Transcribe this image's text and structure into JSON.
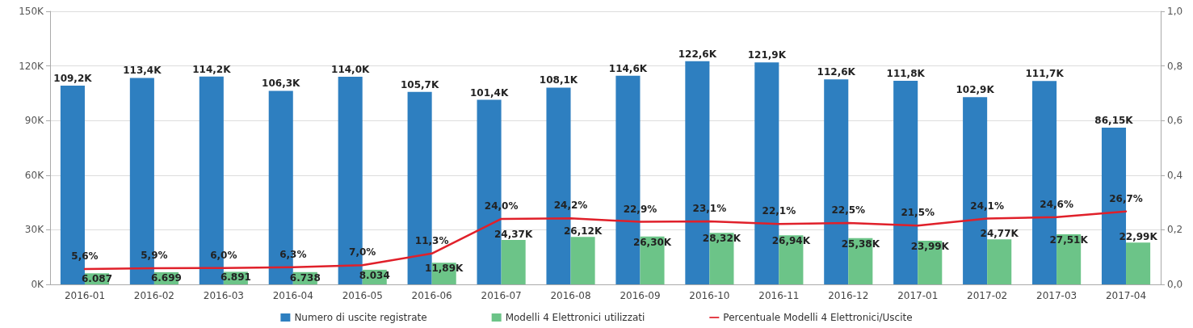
{
  "chart_data": {
    "type": "bar",
    "categories": [
      "2016-01",
      "2016-02",
      "2016-03",
      "2016-04",
      "2016-05",
      "2016-06",
      "2016-07",
      "2016-08",
      "2016-09",
      "2016-10",
      "2016-11",
      "2016-12",
      "2017-01",
      "2017-02",
      "2017-03",
      "2017-04"
    ],
    "series": [
      {
        "name": "Numero di uscite registrate",
        "color": "#2e7fc0",
        "values": [
          109200,
          113400,
          114200,
          106300,
          114000,
          105700,
          101400,
          108100,
          114600,
          122600,
          121900,
          112600,
          111800,
          102900,
          111700,
          86150
        ],
        "value_labels": [
          "109,2K",
          "113,4K",
          "114,2K",
          "106,3K",
          "114,0K",
          "105,7K",
          "101,4K",
          "108,1K",
          "114,6K",
          "122,6K",
          "121,9K",
          "112,6K",
          "111,8K",
          "102,9K",
          "111,7K",
          "86,15K"
        ]
      },
      {
        "name": "Modelli 4 Elettronici utilizzati",
        "color": "#6cc488",
        "values": [
          6087,
          6699,
          6891,
          6738,
          8034,
          11890,
          24370,
          26120,
          26300,
          28320,
          26940,
          25380,
          23990,
          24770,
          27510,
          22990
        ],
        "value_labels": [
          "6.087",
          "6.699",
          "6.891",
          "6.738",
          "8.034",
          "11,89K",
          "24,37K",
          "26,12K",
          "26,30K",
          "28,32K",
          "26,94K",
          "25,38K",
          "23,99K",
          "24,77K",
          "27,51K",
          "22,99K"
        ]
      },
      {
        "name": "Percentuale Modelli 4 Elettronici/Uscite",
        "type": "line",
        "axis": "y2",
        "color": "#e0202a",
        "marker": "none",
        "line_style": "solid",
        "values": [
          0.056,
          0.059,
          0.06,
          0.063,
          0.07,
          0.113,
          0.24,
          0.242,
          0.229,
          0.231,
          0.221,
          0.225,
          0.215,
          0.241,
          0.246,
          0.267
        ],
        "value_labels": [
          "5,6%",
          "5,9%",
          "6,0%",
          "6,3%",
          "7,0%",
          "11,3%",
          "24,0%",
          "24,2%",
          "22,9%",
          "23,1%",
          "22,1%",
          "22,5%",
          "21,5%",
          "24,1%",
          "24,6%",
          "26,7%"
        ]
      }
    ],
    "ylim": [
      0,
      150000
    ],
    "yticks": [
      {
        "value": 0,
        "label": "0K"
      },
      {
        "value": 30000,
        "label": "30K"
      },
      {
        "value": 60000,
        "label": "60K"
      },
      {
        "value": 90000,
        "label": "90K"
      },
      {
        "value": 120000,
        "label": "120K"
      },
      {
        "value": 150000,
        "label": "150K"
      }
    ],
    "y2lim": [
      0,
      1
    ],
    "y2ticks": [
      {
        "value": 0,
        "label": "0,0"
      },
      {
        "value": 0.2,
        "label": "0,2"
      },
      {
        "value": 0.4,
        "label": "0,4"
      },
      {
        "value": 0.6,
        "label": "0,6"
      },
      {
        "value": 0.8,
        "label": "0,8"
      },
      {
        "value": 1,
        "label": "1,0"
      }
    ],
    "grid": "y",
    "legend": "bottom"
  }
}
